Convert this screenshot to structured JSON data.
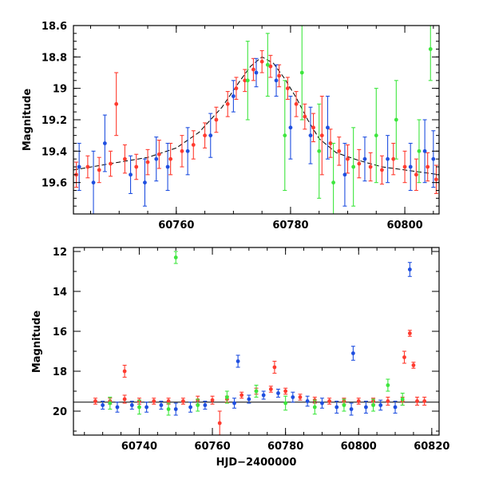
{
  "chart_data": [
    {
      "type": "scatter",
      "panel": "top",
      "title": "",
      "xlabel": "",
      "ylabel": "Magnitude",
      "xlim": [
        60742,
        60806
      ],
      "ylim": [
        19.8,
        18.6
      ],
      "y_inverted": true,
      "xticks": [
        60760,
        60780,
        60800
      ],
      "xtick_labels": [
        "60760",
        "60780",
        "60800"
      ],
      "yticks": [
        18.6,
        18.8,
        19.0,
        19.2,
        19.4,
        19.6
      ],
      "ytick_labels": [
        "18.6",
        "18.8",
        "19",
        "19.2",
        "19.4",
        "19.6"
      ],
      "model_curve": {
        "x": [
          60742,
          60750,
          60755,
          60760,
          60764,
          60768,
          60771,
          60773,
          60775,
          60777,
          60779,
          60781,
          60783,
          60785,
          60788,
          60792,
          60796,
          60800,
          60806
        ],
        "y": [
          19.52,
          19.47,
          19.44,
          19.38,
          19.28,
          19.12,
          18.96,
          18.86,
          18.8,
          18.84,
          18.94,
          19.06,
          19.2,
          19.32,
          19.41,
          19.46,
          19.5,
          19.52,
          19.55
        ]
      },
      "series": [
        {
          "color": "#ff3b2f",
          "x": [
            60742.5,
            60744.5,
            60746.5,
            60748.5,
            60749.5,
            60751.0,
            60753.0,
            60755.0,
            60757.0,
            60759.0,
            60761.0,
            60763.0,
            60765.0,
            60767.0,
            60769.0,
            60770.5,
            60772.0,
            60773.5,
            60775.0,
            60776.5,
            60778.0,
            60779.5,
            60781.0,
            60782.5,
            60784.0,
            60785.5,
            60787.0,
            60788.5,
            60790.0,
            60792.0,
            60794.0,
            60796.0,
            60798.0,
            60800.0,
            60802.0,
            60804.0,
            60805.5
          ],
          "y": [
            19.55,
            19.5,
            19.52,
            19.48,
            19.1,
            19.45,
            19.5,
            19.47,
            19.42,
            19.45,
            19.4,
            19.36,
            19.3,
            19.2,
            19.1,
            19.0,
            18.95,
            18.88,
            18.83,
            18.86,
            18.92,
            19.0,
            19.1,
            19.18,
            19.25,
            19.3,
            19.35,
            19.4,
            19.45,
            19.48,
            19.5,
            19.52,
            19.45,
            19.5,
            19.55,
            19.5,
            19.58
          ],
          "err": [
            0.08,
            0.07,
            0.08,
            0.08,
            0.2,
            0.09,
            0.08,
            0.08,
            0.09,
            0.1,
            0.1,
            0.09,
            0.08,
            0.08,
            0.08,
            0.07,
            0.07,
            0.07,
            0.07,
            0.07,
            0.07,
            0.07,
            0.08,
            0.08,
            0.09,
            0.25,
            0.09,
            0.09,
            0.09,
            0.09,
            0.09,
            0.09,
            0.1,
            0.1,
            0.1,
            0.09,
            0.09
          ]
        },
        {
          "color": "#1f4fe0",
          "x": [
            60743.0,
            60745.5,
            60747.5,
            60752.0,
            60754.5,
            60756.5,
            60758.5,
            60762.0,
            60766.0,
            60770.0,
            60774.0,
            60777.5,
            60780.0,
            60783.5,
            60786.5,
            60789.5,
            60793.0,
            60797.0,
            60801.0,
            60803.5,
            60805.0
          ],
          "y": [
            19.5,
            19.6,
            19.35,
            19.55,
            19.6,
            19.45,
            19.5,
            19.4,
            19.3,
            19.05,
            18.9,
            18.95,
            19.25,
            19.3,
            19.25,
            19.55,
            19.45,
            19.45,
            19.5,
            19.4,
            19.45
          ],
          "err": [
            0.15,
            0.2,
            0.18,
            0.12,
            0.15,
            0.14,
            0.15,
            0.15,
            0.14,
            0.1,
            0.09,
            0.1,
            0.2,
            0.18,
            0.2,
            0.2,
            0.14,
            0.15,
            0.15,
            0.2,
            0.18
          ]
        },
        {
          "color": "#3ee63e",
          "x": [
            60772.5,
            60776.0,
            60779.0,
            60782.0,
            60785.0,
            60787.5,
            60791.0,
            60795.0,
            60798.5,
            60802.5,
            60804.5
          ],
          "y": [
            18.95,
            18.85,
            19.3,
            18.9,
            19.4,
            19.6,
            19.5,
            19.3,
            19.2,
            19.4,
            18.75
          ],
          "err": [
            0.25,
            0.2,
            0.35,
            0.3,
            0.3,
            0.25,
            0.25,
            0.3,
            0.25,
            0.2,
            0.2
          ]
        }
      ]
    },
    {
      "type": "scatter",
      "panel": "bottom",
      "title": "",
      "xlabel": "HJD−2400000",
      "ylabel": "Magnitude",
      "xlim": [
        60722,
        60822
      ],
      "ylim": [
        21.2,
        11.8
      ],
      "y_inverted": true,
      "xticks": [
        60740,
        60760,
        60780,
        60800,
        60820
      ],
      "xtick_labels": [
        "60740",
        "60760",
        "60780",
        "60800",
        "60820"
      ],
      "yticks": [
        12,
        14,
        16,
        18,
        20
      ],
      "ytick_labels": [
        "12",
        "14",
        "16",
        "18",
        "20"
      ],
      "baseline": 19.55,
      "series": [
        {
          "color": "#ff3b2f",
          "x": [
            60728,
            60732,
            60736,
            60740,
            60744,
            60748,
            60752,
            60756,
            60760,
            60762,
            60764,
            60768,
            60772,
            60776,
            60780,
            60784,
            60788,
            60792,
            60796,
            60800,
            60804,
            60808,
            60812,
            60814,
            60815,
            60816,
            60818,
            60736,
            60777,
            60812.5
          ],
          "y": [
            19.5,
            19.5,
            19.4,
            19.5,
            19.5,
            19.5,
            19.5,
            19.45,
            19.45,
            20.6,
            19.4,
            19.2,
            19.0,
            18.9,
            19.0,
            19.3,
            19.45,
            19.5,
            19.5,
            19.5,
            19.5,
            19.5,
            19.5,
            16.1,
            17.7,
            19.5,
            19.5,
            18.0,
            17.8,
            17.3
          ],
          "err": [
            0.15,
            0.15,
            0.2,
            0.15,
            0.15,
            0.15,
            0.15,
            0.2,
            0.2,
            0.6,
            0.15,
            0.15,
            0.15,
            0.15,
            0.15,
            0.15,
            0.15,
            0.15,
            0.15,
            0.15,
            0.15,
            0.2,
            0.2,
            0.15,
            0.15,
            0.2,
            0.2,
            0.3,
            0.3,
            0.3
          ]
        },
        {
          "color": "#1f4fe0",
          "x": [
            60730,
            60734,
            60738,
            60742,
            60746,
            60750,
            60754,
            60758,
            60766,
            60770,
            60774,
            60778,
            60782,
            60786,
            60790,
            60794,
            60798,
            60802,
            60806,
            60810,
            60814,
            60767,
            60798.5
          ],
          "y": [
            19.7,
            19.8,
            19.7,
            19.8,
            19.7,
            19.9,
            19.8,
            19.7,
            19.6,
            19.4,
            19.2,
            19.1,
            19.3,
            19.5,
            19.6,
            19.8,
            19.9,
            19.8,
            19.7,
            19.8,
            12.9,
            17.5,
            17.1
          ],
          "err": [
            0.2,
            0.25,
            0.2,
            0.25,
            0.2,
            0.3,
            0.25,
            0.2,
            0.25,
            0.2,
            0.2,
            0.2,
            0.25,
            0.25,
            0.25,
            0.3,
            0.3,
            0.3,
            0.25,
            0.3,
            0.35,
            0.3,
            0.35
          ]
        },
        {
          "color": "#3ee63e",
          "x": [
            60732,
            60740,
            60748,
            60756,
            60764,
            60772,
            60780,
            60788,
            60796,
            60804,
            60812,
            60750,
            60808
          ],
          "y": [
            19.6,
            19.8,
            19.9,
            19.7,
            19.3,
            19.0,
            19.6,
            19.8,
            19.7,
            19.7,
            19.4,
            12.3,
            18.7
          ],
          "err": [
            0.3,
            0.35,
            0.3,
            0.3,
            0.3,
            0.3,
            0.35,
            0.35,
            0.3,
            0.3,
            0.3,
            0.3,
            0.3
          ]
        }
      ]
    }
  ]
}
